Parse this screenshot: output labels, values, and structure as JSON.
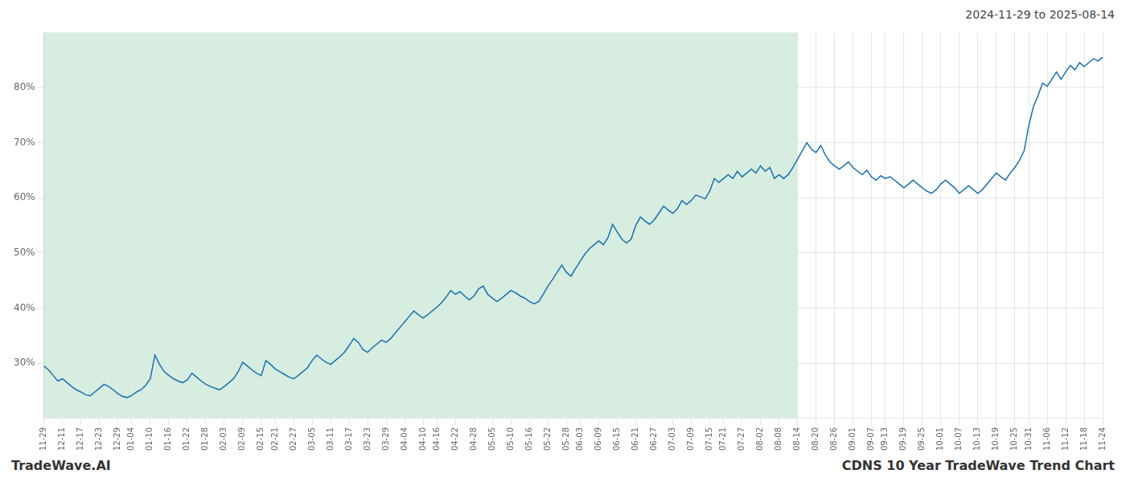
{
  "chart_data": {
    "type": "line",
    "title": "CDNS 10 Year TradeWave Trend Chart",
    "subtitle": "2024-11-29 to 2025-08-14",
    "annotations": [
      "TradeWave.AI"
    ],
    "color": "#1a6faf",
    "shaded_range": {
      "from": "11-29",
      "to": "08-14",
      "color": "#d6ede0"
    },
    "grid": true,
    "ylim": [
      20,
      90
    ],
    "yticks": [
      {
        "value": 30,
        "label": "30%"
      },
      {
        "value": 40,
        "label": "40%"
      },
      {
        "value": 50,
        "label": "50%"
      },
      {
        "value": 60,
        "label": "60%"
      },
      {
        "value": 70,
        "label": "70%"
      },
      {
        "value": 80,
        "label": "80%"
      }
    ],
    "categories": [
      "11-29",
      null,
      null,
      null,
      "12-11",
      null,
      null,
      null,
      "12-17",
      null,
      null,
      null,
      "12-23",
      null,
      null,
      null,
      "12-29",
      null,
      null,
      "01-04",
      null,
      null,
      null,
      "01-10",
      null,
      null,
      null,
      "01-16",
      null,
      null,
      null,
      "01-22",
      null,
      null,
      null,
      "01-28",
      null,
      null,
      null,
      "02-03",
      null,
      null,
      null,
      "02-09",
      null,
      null,
      null,
      "02-15",
      null,
      null,
      "02-21",
      null,
      null,
      null,
      "02-27",
      null,
      null,
      null,
      "03-05",
      null,
      null,
      null,
      "03-11",
      null,
      null,
      null,
      "03-17",
      null,
      null,
      null,
      "03-23",
      null,
      null,
      null,
      "03-29",
      null,
      null,
      null,
      "04-04",
      null,
      null,
      null,
      "04-10",
      null,
      null,
      "04-16",
      null,
      null,
      null,
      "04-22",
      null,
      null,
      null,
      "04-28",
      null,
      null,
      null,
      "05-05",
      null,
      null,
      null,
      "05-10",
      null,
      null,
      null,
      "05-16",
      null,
      null,
      null,
      "05-22",
      null,
      null,
      null,
      "05-28",
      null,
      null,
      "06-03",
      null,
      null,
      null,
      "06-09",
      null,
      null,
      null,
      "06-15",
      null,
      null,
      null,
      "06-21",
      null,
      null,
      null,
      "06-27",
      null,
      null,
      null,
      "07-03",
      null,
      null,
      null,
      "07-09",
      null,
      null,
      null,
      "07-15",
      null,
      null,
      "07-21",
      null,
      null,
      null,
      "07-27",
      null,
      null,
      null,
      "08-02",
      null,
      null,
      null,
      "08-08",
      null,
      null,
      null,
      "08-14",
      null,
      null,
      null,
      "08-20",
      null,
      null,
      null,
      "08-26",
      null,
      null,
      null,
      "09-01",
      null,
      null,
      null,
      "09-07",
      null,
      null,
      "09-13",
      null,
      null,
      null,
      "09-19",
      null,
      null,
      null,
      "09-25",
      null,
      null,
      null,
      "10-01",
      null,
      null,
      null,
      "10-07",
      null,
      null,
      null,
      "10-13",
      null,
      null,
      null,
      "10-19",
      null,
      null,
      null,
      "10-25",
      null,
      null,
      "10-31",
      null,
      null,
      null,
      "11-06",
      null,
      null,
      null,
      "11-12",
      null,
      null,
      null,
      "11-18",
      null,
      null,
      null,
      "11-24"
    ],
    "values": [
      29.5,
      28.8,
      27.8,
      26.8,
      27.2,
      26.5,
      25.8,
      25.2,
      24.8,
      24.3,
      24.1,
      24.8,
      25.5,
      26.2,
      25.8,
      25.2,
      24.5,
      24.0,
      23.8,
      24.2,
      24.8,
      25.2,
      26.0,
      27.2,
      31.5,
      29.8,
      28.5,
      27.8,
      27.2,
      26.8,
      26.5,
      27.0,
      28.2,
      27.5,
      26.8,
      26.2,
      25.8,
      25.5,
      25.2,
      25.8,
      26.5,
      27.2,
      28.5,
      30.2,
      29.5,
      28.8,
      28.2,
      27.8,
      30.5,
      29.8,
      29.0,
      28.5,
      28.0,
      27.5,
      27.2,
      27.8,
      28.5,
      29.2,
      30.5,
      31.5,
      30.8,
      30.2,
      29.8,
      30.5,
      31.2,
      32.0,
      33.2,
      34.5,
      33.8,
      32.5,
      32.0,
      32.8,
      33.5,
      34.2,
      33.8,
      34.5,
      35.5,
      36.5,
      37.5,
      38.5,
      39.5,
      38.8,
      38.2,
      38.8,
      39.5,
      40.2,
      41.0,
      42.0,
      43.2,
      42.5,
      43.0,
      42.2,
      41.5,
      42.2,
      43.5,
      44.0,
      42.5,
      41.8,
      41.2,
      41.8,
      42.5,
      43.2,
      42.8,
      42.2,
      41.8,
      41.2,
      40.8,
      41.2,
      42.5,
      44.0,
      45.2,
      46.5,
      47.8,
      46.5,
      45.8,
      47.2,
      48.5,
      49.8,
      50.8,
      51.5,
      52.2,
      51.5,
      52.8,
      55.2,
      53.8,
      52.5,
      51.8,
      52.5,
      55.0,
      56.5,
      55.8,
      55.2,
      56.0,
      57.2,
      58.5,
      57.8,
      57.2,
      58.0,
      59.5,
      58.8,
      59.5,
      60.5,
      60.2,
      59.8,
      61.2,
      63.5,
      62.8,
      63.5,
      64.2,
      63.5,
      64.8,
      63.8,
      64.5,
      65.2,
      64.5,
      65.8,
      64.8,
      65.5,
      63.5,
      64.2,
      63.5,
      64.2,
      65.5,
      67.0,
      68.5,
      70.0,
      68.8,
      68.2,
      69.5,
      67.8,
      66.5,
      65.8,
      65.2,
      65.8,
      66.5,
      65.5,
      64.8,
      64.2,
      65.0,
      63.8,
      63.2,
      64.0,
      63.5,
      63.8,
      63.2,
      62.5,
      61.8,
      62.5,
      63.2,
      62.5,
      61.8,
      61.2,
      60.8,
      61.5,
      62.5,
      63.2,
      62.5,
      61.8,
      60.8,
      61.5,
      62.2,
      61.5,
      60.8,
      61.5,
      62.5,
      63.5,
      64.5,
      63.8,
      63.2,
      64.5,
      65.5,
      66.8,
      68.5,
      73.0,
      76.5,
      78.5,
      80.8,
      80.2,
      81.5,
      82.8,
      81.5,
      82.8,
      84.0,
      83.2,
      84.5,
      83.8,
      84.5,
      85.2,
      84.8,
      85.5
    ]
  }
}
